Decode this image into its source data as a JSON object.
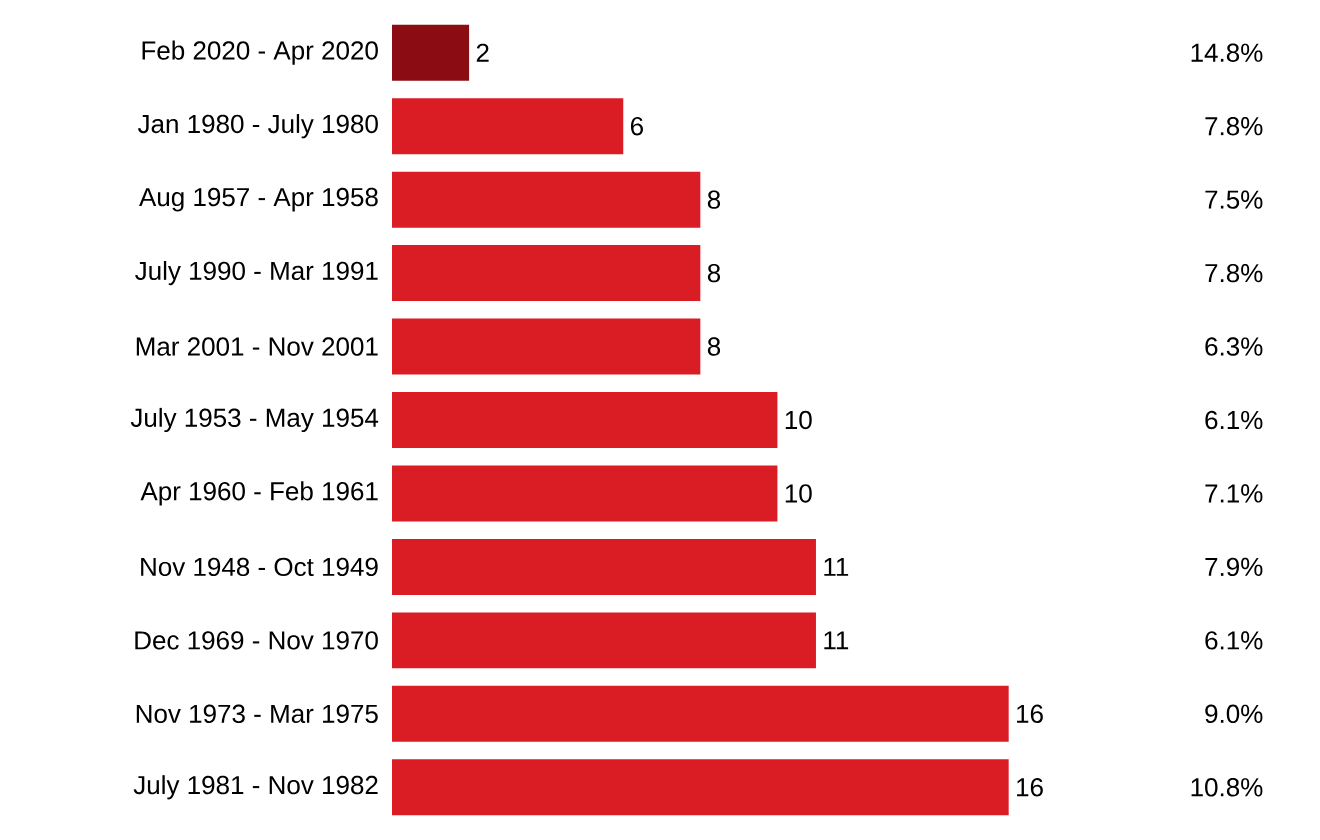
{
  "chart_data": {
    "type": "bar",
    "orientation": "horizontal",
    "categories": [
      "Feb 2020 - Apr 2020",
      "Jan 1980 - July 1980",
      "Aug 1957 - Apr 1958",
      "July 1990 - Mar 1991",
      "Mar 2001 - Nov 2001",
      "July 1953 - May 1954",
      "Apr 1960 - Feb 1961",
      "Nov 1948 - Oct 1949",
      "Dec 1969 - Nov 1970",
      "Nov 1973 - Mar 1975",
      "July 1981 - Nov 1982"
    ],
    "values": [
      2,
      6,
      8,
      8,
      8,
      10,
      10,
      11,
      11,
      16,
      16
    ],
    "colors": [
      "#8b0c12",
      "#da1c24",
      "#da1c24",
      "#da1c24",
      "#da1c24",
      "#da1c24",
      "#da1c24",
      "#da1c24",
      "#da1c24",
      "#da1c24",
      "#da1c24"
    ],
    "data_labels": true,
    "annotations": [
      "14.8%",
      "7.8%",
      "7.5%",
      "7.8%",
      "6.3%",
      "6.1%",
      "7.1%",
      "7.9%",
      "6.1%",
      "9.0%",
      "10.8%"
    ]
  }
}
